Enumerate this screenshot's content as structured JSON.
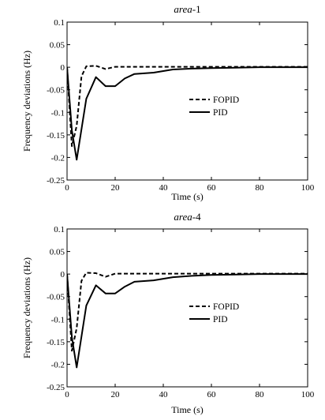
{
  "chart_data": [
    {
      "type": "line",
      "title": "area-1",
      "title_italic_part": "area",
      "title_suffix": "-1",
      "xlabel": "Time (s)",
      "ylabel": "Frequency deviations (Hz)",
      "xlim": [
        0,
        100
      ],
      "ylim": [
        -0.25,
        0.1
      ],
      "xticks": [
        0,
        20,
        40,
        60,
        80,
        100
      ],
      "yticks": [
        0.1,
        0.05,
        0,
        -0.05,
        -0.1,
        -0.15,
        -0.2,
        -0.25
      ],
      "ytick_labels": [
        "0.1",
        "0.05",
        "0",
        "-0.05",
        "-0.1",
        "-0.15",
        "-0.2",
        "-0.25"
      ],
      "grid": false,
      "legend_position": "center-right",
      "series": [
        {
          "name": "FOPID",
          "style": "dashed",
          "x": [
            0,
            2,
            4,
            6,
            8,
            12,
            16,
            20,
            30,
            40,
            60,
            80,
            100
          ],
          "y": [
            0,
            -0.175,
            -0.13,
            -0.02,
            0.002,
            0.003,
            -0.004,
            0.001,
            0.001,
            0.001,
            0.001,
            0.001,
            0.001
          ]
        },
        {
          "name": "PID",
          "style": "solid",
          "x": [
            0,
            2,
            4,
            8,
            12,
            16,
            20,
            24,
            28,
            36,
            44,
            52,
            60,
            70,
            80,
            100
          ],
          "y": [
            0,
            -0.14,
            -0.205,
            -0.07,
            -0.022,
            -0.042,
            -0.042,
            -0.025,
            -0.015,
            -0.012,
            -0.005,
            -0.003,
            -0.002,
            -0.001,
            0,
            0
          ]
        }
      ]
    },
    {
      "type": "line",
      "title": "area-4",
      "title_italic_part": "area",
      "title_suffix": "-4",
      "xlabel": "Time (s)",
      "ylabel": "Frequency deviations (Hz)",
      "xlim": [
        0,
        100
      ],
      "ylim": [
        -0.25,
        0.1
      ],
      "xticks": [
        0,
        20,
        40,
        60,
        80,
        100
      ],
      "yticks": [
        0.1,
        0.05,
        0,
        -0.05,
        -0.1,
        -0.15,
        -0.2,
        -0.25
      ],
      "ytick_labels": [
        "0.1",
        "0.05",
        "0",
        "-0.05",
        "-0.1",
        "-0.15",
        "-0.2",
        "-0.25"
      ],
      "grid": false,
      "legend_position": "center-right",
      "series": [
        {
          "name": "FOPID",
          "style": "dashed",
          "x": [
            0,
            2,
            4,
            6,
            8,
            12,
            16,
            20,
            30,
            40,
            60,
            80,
            100
          ],
          "y": [
            0,
            -0.17,
            -0.12,
            -0.015,
            0.003,
            0.002,
            -0.006,
            0.001,
            0.001,
            0.001,
            0.001,
            0.001,
            0.001
          ]
        },
        {
          "name": "PID",
          "style": "solid",
          "x": [
            0,
            2,
            4,
            8,
            12,
            16,
            20,
            24,
            28,
            36,
            44,
            52,
            60,
            70,
            80,
            100
          ],
          "y": [
            0,
            -0.14,
            -0.207,
            -0.07,
            -0.025,
            -0.043,
            -0.043,
            -0.028,
            -0.017,
            -0.014,
            -0.007,
            -0.004,
            -0.002,
            -0.001,
            0,
            0
          ]
        }
      ]
    }
  ]
}
